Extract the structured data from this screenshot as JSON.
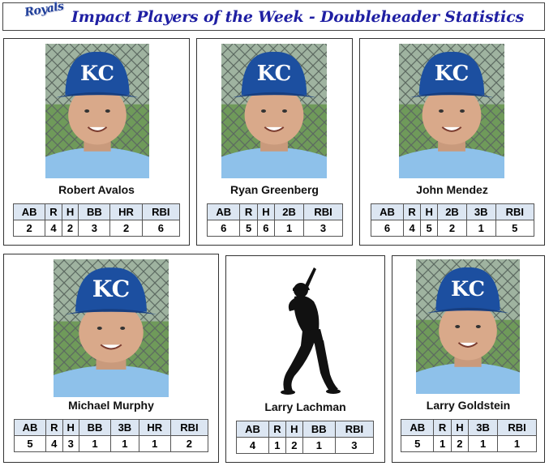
{
  "header": {
    "logo_text": "Royals",
    "title": "Impact Players of the Week - Doubleheader Statistics"
  },
  "players": [
    {
      "name": "Robert Avalos",
      "headers": [
        "AB",
        "R",
        "H",
        "BB",
        "HR",
        "RBI"
      ],
      "values": [
        "2",
        "4",
        "2",
        "3",
        "2",
        "6"
      ]
    },
    {
      "name": "Ryan Greenberg",
      "headers": [
        "AB",
        "R",
        "H",
        "2B",
        "RBI"
      ],
      "values": [
        "6",
        "5",
        "6",
        "1",
        "3"
      ]
    },
    {
      "name": "John Mendez",
      "headers": [
        "AB",
        "R",
        "H",
        "2B",
        "3B",
        "RBI"
      ],
      "values": [
        "6",
        "4",
        "5",
        "2",
        "1",
        "5"
      ]
    },
    {
      "name": "Michael Murphy",
      "headers": [
        "AB",
        "R",
        "H",
        "BB",
        "3B",
        "HR",
        "RBI"
      ],
      "values": [
        "5",
        "4",
        "3",
        "1",
        "1",
        "1",
        "2"
      ]
    },
    {
      "name": "Larry Lachman",
      "headers": [
        "AB",
        "R",
        "H",
        "BB",
        "RBI"
      ],
      "values": [
        "4",
        "1",
        "2",
        "1",
        "3"
      ]
    },
    {
      "name": "Larry Goldstein",
      "headers": [
        "AB",
        "R",
        "H",
        "3B",
        "RBI"
      ],
      "values": [
        "5",
        "1",
        "2",
        "1",
        "1"
      ]
    }
  ],
  "cap_logo_text": "KC",
  "colors": {
    "title": "#1f1fa3",
    "header_cell": "#dce6f2",
    "cap": "#1c4fa0",
    "jersey": "#8ec1ea"
  }
}
